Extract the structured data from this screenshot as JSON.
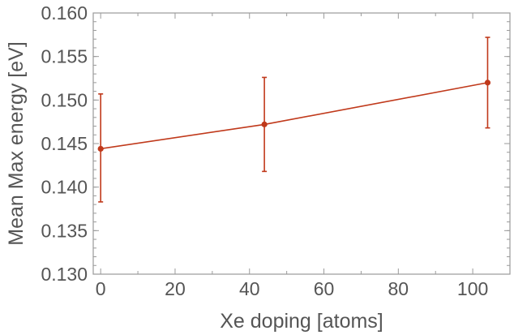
{
  "chart_data": {
    "type": "line",
    "xlabel": "Xe doping [atoms]",
    "ylabel": "Mean Max energy [eV]",
    "xlim": [
      -2,
      110
    ],
    "ylim": [
      0.13,
      0.16
    ],
    "x_ticks": [
      0,
      20,
      40,
      60,
      80,
      100
    ],
    "x_tick_labels": [
      "0",
      "20",
      "40",
      "60",
      "80",
      "100"
    ],
    "y_ticks": [
      0.13,
      0.135,
      0.14,
      0.145,
      0.15,
      0.155,
      0.16
    ],
    "y_tick_labels": [
      "0.130",
      "0.135",
      "0.140",
      "0.145",
      "0.150",
      "0.155",
      "0.160"
    ],
    "grid": false,
    "series": [
      {
        "color": "#c0391b",
        "x": [
          0,
          44,
          104
        ],
        "y": [
          0.1444,
          0.1472,
          0.152
        ],
        "y_err_low": [
          0.1383,
          0.1418,
          0.1468
        ],
        "y_err_high": [
          0.1507,
          0.1526,
          0.1572
        ]
      }
    ]
  }
}
